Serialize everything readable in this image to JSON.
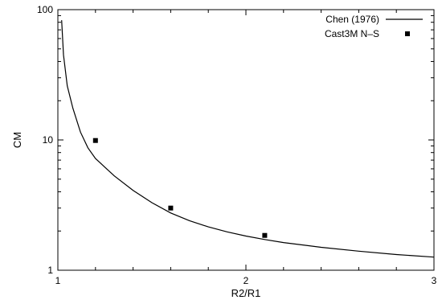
{
  "chart_data": {
    "type": "line",
    "xlabel": "R2/R1",
    "ylabel": "CM",
    "xlim": [
      1,
      3
    ],
    "ylim": [
      1,
      100
    ],
    "xscale": "linear",
    "yscale": "log",
    "grid": false,
    "legend_position": "top-right",
    "x_ticks": [
      1,
      2,
      3
    ],
    "x_tick_labels": [
      "1",
      "2",
      "3"
    ],
    "y_ticks": [
      1,
      10,
      100
    ],
    "y_tick_labels": [
      "1",
      "10",
      "100"
    ],
    "series": [
      {
        "name": "Chen (1976)",
        "style": "line",
        "color": "#000000",
        "x": [
          1.02,
          1.03,
          1.05,
          1.08,
          1.12,
          1.16,
          1.2,
          1.3,
          1.4,
          1.5,
          1.6,
          1.7,
          1.8,
          1.9,
          2.0,
          2.1,
          2.2,
          2.4,
          2.6,
          2.8,
          3.0
        ],
        "y": [
          83,
          45,
          26,
          17.5,
          11.5,
          8.7,
          7.2,
          5.3,
          4.1,
          3.3,
          2.75,
          2.4,
          2.15,
          1.97,
          1.83,
          1.72,
          1.63,
          1.5,
          1.4,
          1.32,
          1.26
        ]
      },
      {
        "name": "Cast3M N–S",
        "style": "scatter",
        "color": "#000000",
        "x": [
          1.2,
          1.6,
          2.1
        ],
        "y": [
          9.9,
          3.0,
          1.85
        ]
      }
    ]
  }
}
